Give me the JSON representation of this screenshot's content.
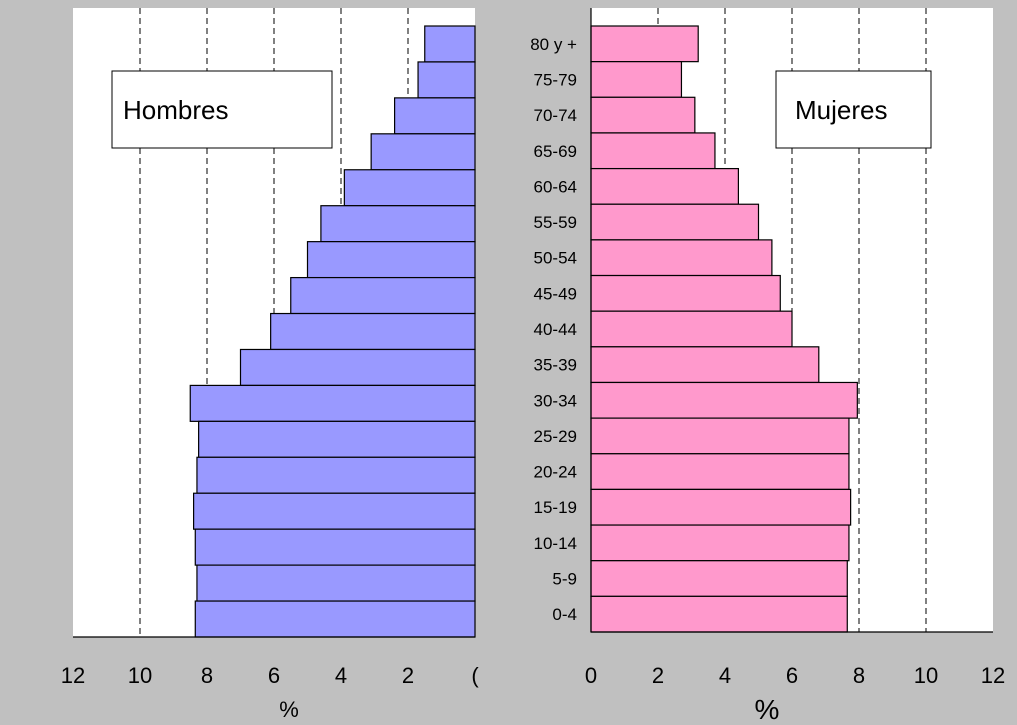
{
  "chart_data": {
    "type": "bar",
    "orientation": "horizontal",
    "layout": "population-pyramid",
    "categories": [
      "80 y +",
      "75-79",
      "70-74",
      "65-69",
      "60-64",
      "55-59",
      "50-54",
      "45-49",
      "40-44",
      "35-39",
      "30-34",
      "25-29",
      "20-24",
      "15-19",
      "10-14",
      "5-9",
      "0-4"
    ],
    "series": [
      {
        "name": "Hombres",
        "color": "#9999ff",
        "values": [
          1.5,
          1.7,
          2.4,
          3.1,
          3.9,
          4.6,
          5.0,
          5.5,
          6.1,
          7.0,
          8.5,
          8.25,
          8.3,
          8.4,
          8.35,
          8.3,
          8.35
        ]
      },
      {
        "name": "Mujeres",
        "color": "#ff99cc",
        "values": [
          3.2,
          2.7,
          3.1,
          3.7,
          4.4,
          5.0,
          5.4,
          5.65,
          6.0,
          6.8,
          7.95,
          7.7,
          7.7,
          7.75,
          7.7,
          7.65,
          7.65
        ]
      }
    ],
    "left_axis": {
      "ticks": [
        "12",
        "10",
        "8",
        "6",
        "4",
        "2",
        "("
      ],
      "xlabel": "%",
      "xlim": [
        12,
        0
      ]
    },
    "right_axis": {
      "ticks": [
        "0",
        "2",
        "4",
        "6",
        "8",
        "10",
        "12"
      ],
      "xlabel": "%",
      "xlim": [
        0,
        12
      ]
    },
    "grid": "vertical-dashed",
    "legend_left": "Hombres",
    "legend_right": "Mujeres"
  }
}
